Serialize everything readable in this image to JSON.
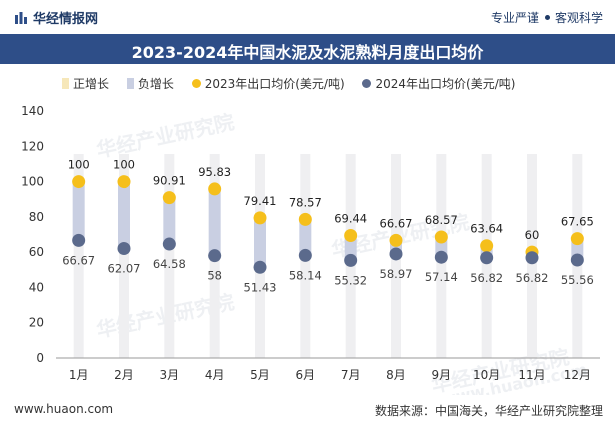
{
  "header": {
    "brand": "华经情报网",
    "slogan_left": "专业严谨",
    "slogan_right": "客观科学",
    "title": "2023-2024年中国水泥及水泥熟料月度出口均价"
  },
  "legend": {
    "pos_growth": "正增长",
    "neg_growth": "负增长",
    "series_2023": "2023年出口均价(美元/吨)",
    "series_2024": "2024年出口均价(美元/吨)"
  },
  "colors": {
    "title_bg": "#2e4e88",
    "pos_bar": "#f6e7b9",
    "neg_bar": "#c9cfe2",
    "series_2023": "#f5bf1b",
    "series_2024": "#5b6a8c",
    "column_bg": "#efeff1"
  },
  "chart_data": {
    "type": "dot-range",
    "title": "2023-2024年中国水泥及水泥熟料月度出口均价",
    "categories": [
      "1月",
      "2月",
      "3月",
      "4月",
      "5月",
      "6月",
      "7月",
      "8月",
      "9月",
      "10月",
      "11月",
      "12月"
    ],
    "series": [
      {
        "name": "2023年出口均价(美元/吨)",
        "values": [
          100,
          100,
          90.91,
          95.83,
          79.41,
          78.57,
          69.44,
          66.67,
          68.57,
          63.64,
          60,
          67.65
        ]
      },
      {
        "name": "2024年出口均价(美元/吨)",
        "values": [
          66.67,
          62.07,
          64.58,
          58,
          51.43,
          58.14,
          55.32,
          58.97,
          57.14,
          56.82,
          56.82,
          55.56
        ]
      }
    ],
    "value_labels_2023": [
      "100",
      "100",
      "90.91",
      "95.83",
      "79.41",
      "78.57",
      "69.44",
      "66.67",
      "68.57",
      "63.64",
      "60",
      "67.65"
    ],
    "value_labels_2024": [
      "66.67",
      "62.07",
      "64.58",
      "58",
      "51.43",
      "58.14",
      "55.32",
      "58.97",
      "57.14",
      "56.82",
      "56.82",
      "55.56"
    ],
    "ylim": [
      0,
      140
    ],
    "yticks": [
      "0",
      "20",
      "40",
      "60",
      "80",
      "100",
      "120",
      "140"
    ],
    "xlabel": "",
    "ylabel": "",
    "grid": false,
    "legend_position": "top"
  },
  "watermarks": [
    "华经产业研究院",
    "www.huaon.com"
  ],
  "footer": {
    "site": "www.huaon.com",
    "source": "数据来源：中国海关，华经产业研究院整理"
  }
}
